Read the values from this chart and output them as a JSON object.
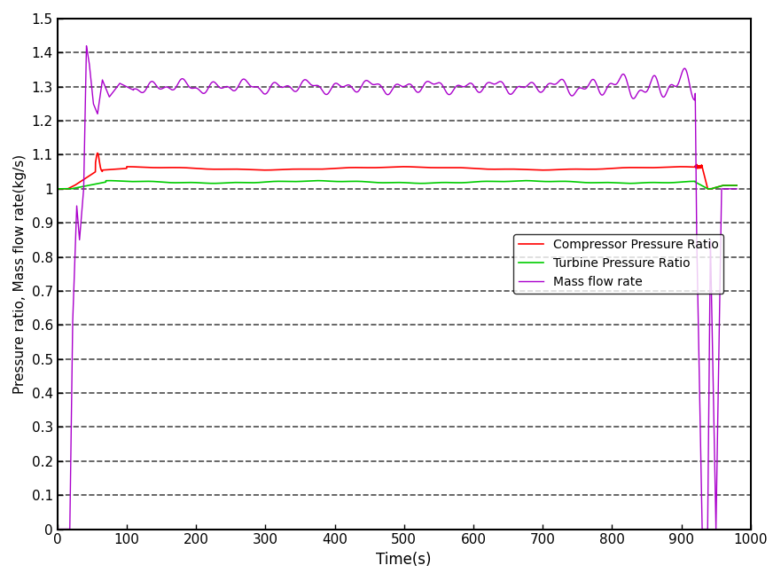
{
  "title": "",
  "xlabel": "Time(s)",
  "ylabel": "Pressure ratio, Mass flow rate(kg/s)",
  "xlim": [
    0,
    1000
  ],
  "ylim": [
    0,
    1.5
  ],
  "yticks": [
    0,
    0.1,
    0.2,
    0.3,
    0.4,
    0.5,
    0.6,
    0.7,
    0.8,
    0.9,
    1.0,
    1.1,
    1.2,
    1.3,
    1.4,
    1.5
  ],
  "ytick_labels": [
    "0",
    "0.1",
    "0.2",
    "0.3",
    "0.4",
    "0.5",
    "0.6",
    "0.7",
    "0.8",
    "0.9",
    "1",
    "1.1",
    "1.2",
    "1.3",
    "1.4",
    "1.5"
  ],
  "xticks": [
    0,
    100,
    200,
    300,
    400,
    500,
    600,
    700,
    800,
    900,
    1000
  ],
  "grid_linestyle": "--",
  "grid_color": "#000000",
  "grid_alpha": 0.7,
  "grid_linewidth": 1.2,
  "line_compressor_color": "#ff0000",
  "line_turbine_color": "#00cc00",
  "line_mass_color": "#aa00cc",
  "legend_labels": [
    "Compressor Pressure Ratio",
    "Turbine Pressure Ratio",
    "Mass flow rate"
  ],
  "figsize": [
    8.81,
    6.55
  ],
  "dpi": 100
}
